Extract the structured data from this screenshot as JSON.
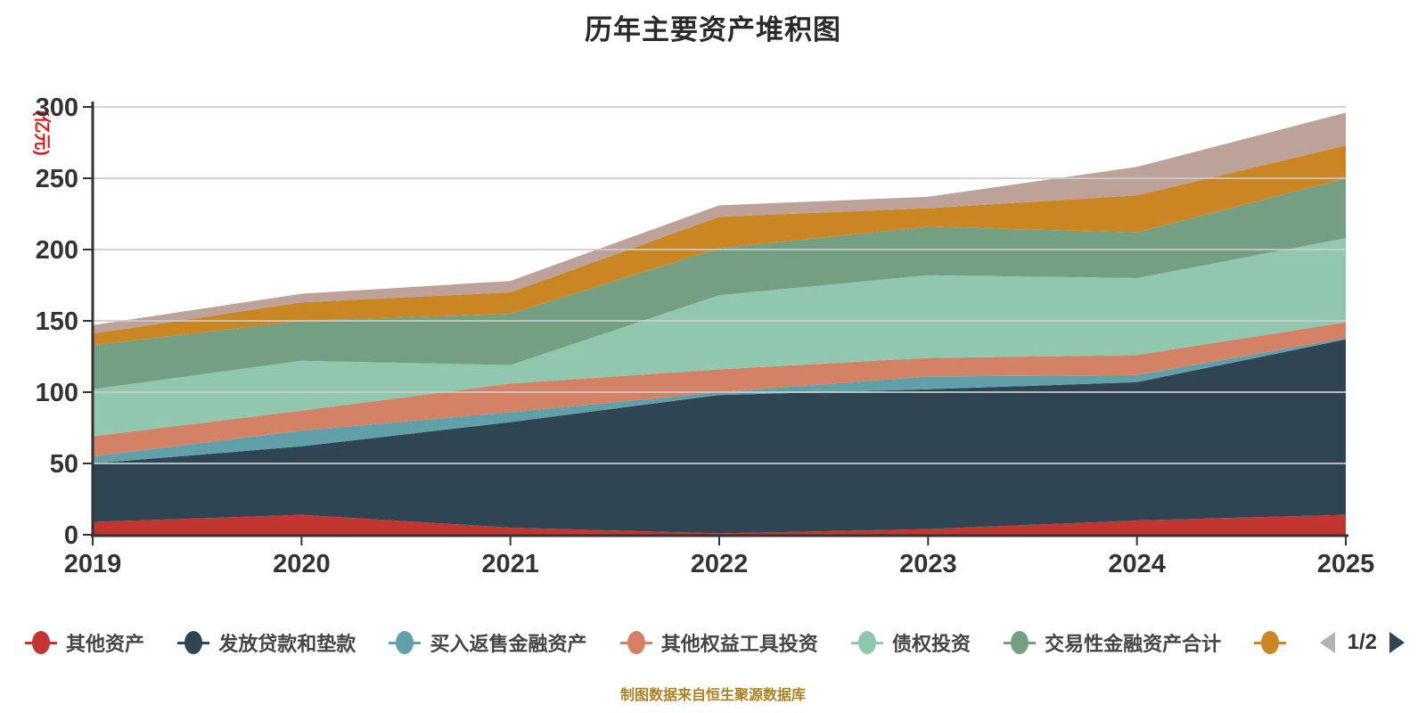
{
  "title": "历年主要资产堆积图",
  "footer": "制图数据来自恒生聚源数据库",
  "axis": {
    "unit_color": "#e01616",
    "label_color": "#333333",
    "line_color": "#333333",
    "grid_color": "#cccccc",
    "footer_color": "#ad8224"
  },
  "legend": {
    "items": [
      {
        "label": "其他资产",
        "color": "#c23531"
      },
      {
        "label": "发放贷款和垫款",
        "color": "#2f4554"
      },
      {
        "label": "买入返售金融资产",
        "color": "#61a0a8"
      },
      {
        "label": "其他权益工具投资",
        "color": "#d48265"
      },
      {
        "label": "债权投资",
        "color": "#91c7ae"
      },
      {
        "label": "交易性金融资产合计",
        "color": "#749f83"
      },
      {
        "label": "",
        "color": "#ca8622"
      }
    ],
    "pagination": {
      "text": "1/2",
      "prev_color": "#b3b3b3",
      "next_color": "#2f4554"
    }
  },
  "chart_data": {
    "type": "area",
    "stacked": true,
    "title": "历年主要资产堆积图",
    "ylabel": "(亿元)",
    "xlabel": "",
    "x": [
      2019,
      2020,
      2021,
      2022,
      2023,
      2024,
      2025
    ],
    "y_ticks": [
      0,
      50,
      100,
      150,
      200,
      250,
      300
    ],
    "ylim": [
      0,
      300
    ],
    "grid": true,
    "legend_position": "bottom",
    "series": [
      {
        "name": "其他资产",
        "color": "#c23531",
        "values": [
          9,
          14,
          5,
          1,
          4,
          10,
          14
        ]
      },
      {
        "name": "发放贷款和垫款",
        "color": "#2f4554",
        "values": [
          41,
          48,
          74,
          97,
          98,
          97,
          123
        ]
      },
      {
        "name": "买入返售金融资产",
        "color": "#61a0a8",
        "values": [
          5,
          11,
          7,
          2,
          9,
          5,
          1
        ]
      },
      {
        "name": "其他权益工具投资",
        "color": "#d48265",
        "values": [
          14,
          14,
          20,
          16,
          13,
          14,
          11
        ]
      },
      {
        "name": "债权投资",
        "color": "#91c7ae",
        "values": [
          33,
          35,
          13,
          52,
          58,
          54,
          59
        ]
      },
      {
        "name": "交易性金融资产合计",
        "color": "#749f83",
        "values": [
          31,
          28,
          36,
          33,
          34,
          32,
          42
        ]
      },
      {
        "name": "",
        "color": "#ca8622",
        "values": [
          8,
          13,
          15,
          22,
          13,
          26,
          23
        ]
      },
      {
        "name": "",
        "color": "#bda29a",
        "values": [
          6,
          6,
          8,
          8,
          8,
          20,
          23
        ]
      }
    ],
    "totals": [
      147,
      169,
      178,
      231,
      237,
      258,
      296
    ]
  }
}
